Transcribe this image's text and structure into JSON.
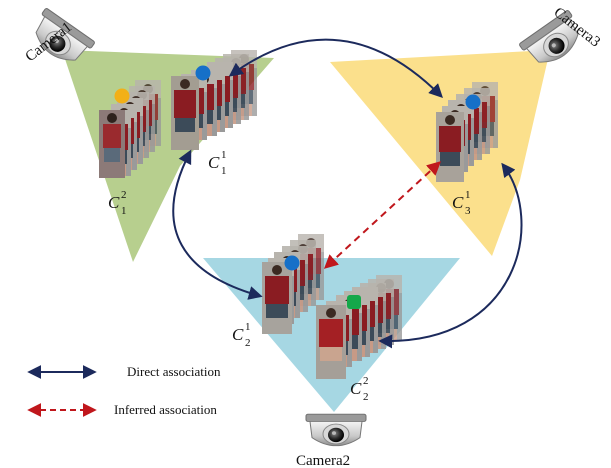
{
  "cameras": {
    "camera1": "Camera1",
    "camera2": "Camera2",
    "camera3": "Camera3"
  },
  "clusters": {
    "c1_2": {
      "symbol": "C",
      "sup": "2",
      "sub": "1"
    },
    "c1_1": {
      "symbol": "C",
      "sup": "1",
      "sub": "1"
    },
    "c3_1": {
      "symbol": "C",
      "sup": "1",
      "sub": "3"
    },
    "c2_1": {
      "symbol": "C",
      "sup": "1",
      "sub": "2"
    },
    "c2_2": {
      "symbol": "C",
      "sup": "2",
      "sub": "2"
    }
  },
  "legend": {
    "direct": "Direct association",
    "inferred": "Inferred association"
  },
  "colors": {
    "camera1_fov": "#b7cf8e",
    "camera2_fov": "#a6d7e3",
    "camera3_fov": "#fbe08c",
    "direct_arrow": "#1c2a5c",
    "inferred_arrow": "#c0171c",
    "dot_orange": "#f2b017",
    "dot_blue": "#1670c8",
    "dot_green": "#14a84a"
  },
  "icons": [
    "camera-icon"
  ]
}
